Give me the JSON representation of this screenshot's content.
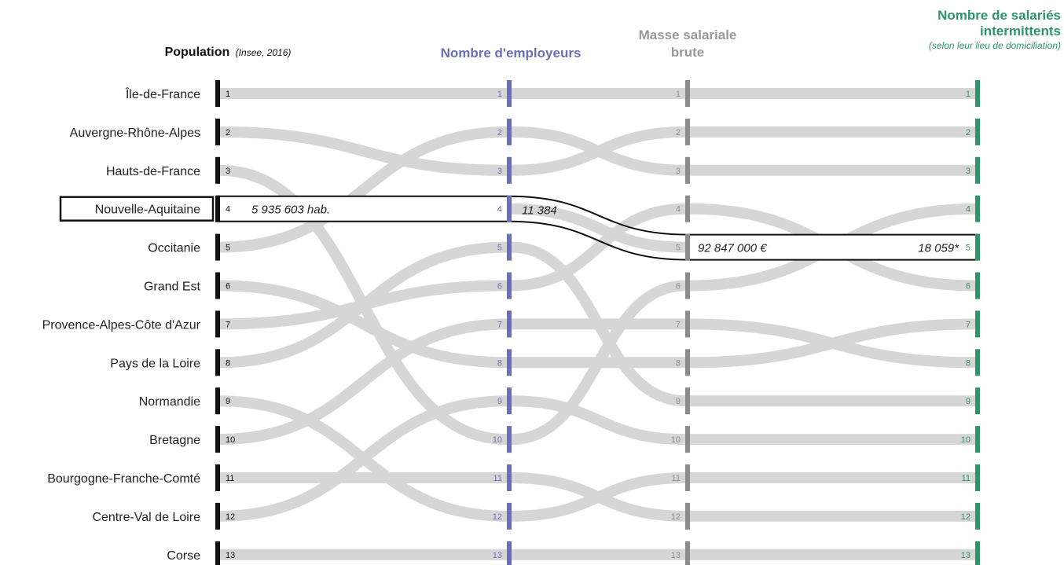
{
  "headers": {
    "population": "Population",
    "population_source": "(Insee, 2016)",
    "employeurs": "Nombre d'employeurs",
    "masse_line1": "Masse salariale",
    "masse_line2": "brute",
    "salaries_line1": "Nombre de salariés",
    "salaries_line2": "intermittents",
    "salaries_sub": "(selon leur lieu de domiciliation)"
  },
  "colors": {
    "population": "#111111",
    "employeurs": "#6a6fb8",
    "masse": "#8c8c8c",
    "salaries": "#2e9469",
    "flow": "#d6d6d6",
    "highlight": "#111111"
  },
  "regions": [
    "Île-de-France",
    "Auvergne-Rhône-Alpes",
    "Hauts-de-France",
    "Nouvelle-Aquitaine",
    "Occitanie",
    "Grand Est",
    "Provence-Alpes-Côte d'Azur",
    "Pays de la Loire",
    "Normandie",
    "Bretagne",
    "Bourgogne-Franche-Comté",
    "Centre-Val de Loire",
    "Corse"
  ],
  "ranks": {
    "population": [
      1,
      2,
      3,
      4,
      5,
      6,
      7,
      8,
      9,
      10,
      11,
      12,
      13
    ],
    "employeurs": [
      1,
      3,
      10,
      4,
      2,
      8,
      6,
      5,
      12,
      7,
      11,
      9,
      13
    ],
    "masse": [
      1,
      2,
      6,
      5,
      3,
      8,
      4,
      9,
      11,
      7,
      12,
      10,
      13
    ],
    "salaries": [
      1,
      2,
      4,
      5,
      3,
      7,
      6,
      9,
      11,
      8,
      12,
      10,
      13
    ]
  },
  "highlight": {
    "region_index": 3,
    "population_value": "5 935 603 hab.",
    "employeurs_value": "11 384",
    "masse_value": "92 847 000 €",
    "salaries_value": "18 059*"
  }
}
